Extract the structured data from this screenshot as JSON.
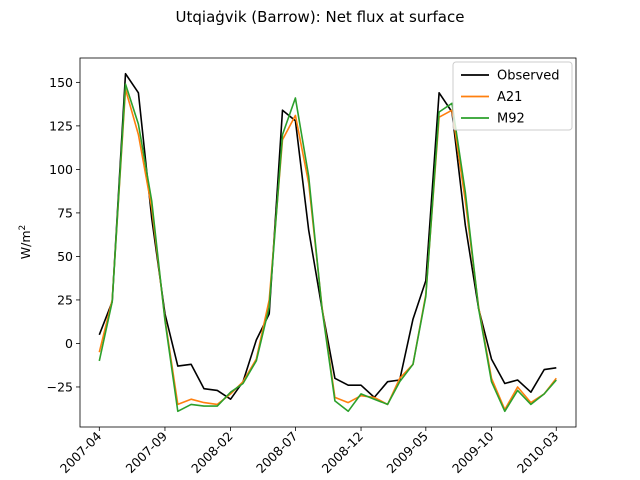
{
  "chart_data": {
    "type": "line",
    "title": "Utqiaġvik (Barrow): Net flux at surface",
    "ylabel": "W/m",
    "ylabel_sup": "2",
    "xlabel": "",
    "ylim": [
      -48,
      164
    ],
    "xlim": [
      "2007-02-15",
      "2010-04-16"
    ],
    "x_ticks": [
      "2007-04",
      "2007-09",
      "2008-02",
      "2008-07",
      "2008-12",
      "2009-05",
      "2009-10",
      "2010-03"
    ],
    "y_ticks": [
      -25,
      0,
      25,
      50,
      75,
      100,
      125,
      150
    ],
    "legend_position": "upper right",
    "grid": false,
    "x": [
      "2007-04",
      "2007-05",
      "2007-06",
      "2007-07",
      "2007-08",
      "2007-09",
      "2007-10",
      "2007-11",
      "2007-12",
      "2008-01",
      "2008-02",
      "2008-03",
      "2008-04",
      "2008-05",
      "2008-06",
      "2008-07",
      "2008-08",
      "2008-09",
      "2008-10",
      "2008-11",
      "2008-12",
      "2009-01",
      "2009-02",
      "2009-03",
      "2009-04",
      "2009-05",
      "2009-06",
      "2009-07",
      "2009-08",
      "2009-09",
      "2009-10",
      "2009-11",
      "2009-12",
      "2010-01",
      "2010-02",
      "2010-03"
    ],
    "series": [
      {
        "name": "Observed",
        "color": "#000000",
        "values": [
          5,
          24,
          155,
          144,
          72,
          17,
          -13,
          -12,
          -26,
          -27,
          -32,
          -22,
          2,
          17,
          134,
          128,
          65,
          20,
          -20,
          -24,
          -24,
          -31,
          -22,
          -21,
          14,
          36,
          144,
          133,
          68,
          20,
          -9,
          -23,
          -21,
          -28,
          -15,
          -14
        ]
      },
      {
        "name": "A21",
        "color": "#ff7f0e",
        "values": [
          -5,
          25,
          146,
          120,
          78,
          14,
          -35,
          -32,
          -34,
          -35,
          -29,
          -22,
          -9,
          25,
          117,
          131,
          92,
          21,
          -31,
          -34,
          -30,
          -31,
          -35,
          -20,
          -12,
          28,
          130,
          134,
          82,
          21,
          -20,
          -38,
          -25,
          -34,
          -29,
          -20
        ]
      },
      {
        "name": "M92",
        "color": "#2ca02c",
        "values": [
          -10,
          24,
          149,
          126,
          82,
          13,
          -39,
          -35,
          -36,
          -36,
          -28,
          -23,
          -10,
          21,
          120,
          141,
          96,
          20,
          -33,
          -39,
          -29,
          -32,
          -35,
          -22,
          -12,
          27,
          133,
          138,
          87,
          20,
          -22,
          -39,
          -27,
          -35,
          -29,
          -21
        ]
      }
    ]
  }
}
